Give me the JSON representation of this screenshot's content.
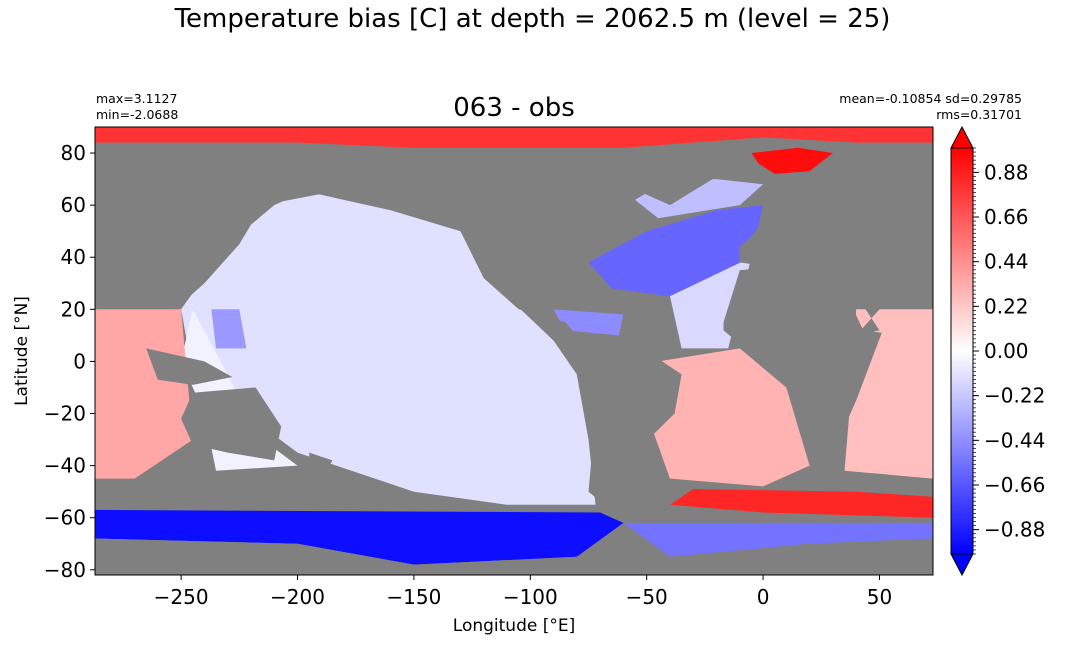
{
  "chart_data": {
    "type": "heatmap",
    "suptitle": "Temperature bias [C] at depth = 2062.5 m (level = 25)",
    "title": "063 - obs",
    "stats": {
      "max": "max=3.1127",
      "min": "min=-2.0688",
      "mean_sd": "mean=-0.10854 sd=0.29785",
      "rms": "rms=0.31701"
    },
    "xlabel": "Longitude [°E]",
    "ylabel": "Latitude [°N]",
    "xlim": [
      -287,
      73
    ],
    "ylim": [
      -82,
      90
    ],
    "x_ticks": [
      -250,
      -200,
      -150,
      -100,
      -50,
      0,
      50
    ],
    "x_tick_labels": [
      "−250",
      "−200",
      "−150",
      "−100",
      "−50",
      "0",
      "50"
    ],
    "y_ticks": [
      80,
      60,
      40,
      20,
      0,
      -20,
      -40,
      -60,
      -80
    ],
    "y_tick_labels": [
      "80",
      "60",
      "40",
      "20",
      "0",
      "−20",
      "−40",
      "−60",
      "−80"
    ],
    "colorbar": {
      "vmin": -1.0,
      "vmax": 1.0,
      "extend": "both",
      "cmap": "bwr",
      "ticks": [
        0.88,
        0.66,
        0.44,
        0.22,
        0.0,
        -0.22,
        -0.44,
        -0.66,
        -0.88
      ],
      "tick_labels": [
        "0.88",
        "0.66",
        "0.44",
        "0.22",
        "0.00",
        "−0.22",
        "−0.44",
        "−0.66",
        "−0.88"
      ],
      "colors": {
        "low": "#0000ff",
        "mid": "#ffffff",
        "high": "#ff0000"
      }
    },
    "land_color": "#808080",
    "regions": [
      {
        "name": "arctic-band",
        "value": 0.8,
        "points": [
          [
            -287,
            90
          ],
          [
            73,
            90
          ],
          [
            73,
            84
          ],
          [
            40,
            84
          ],
          [
            0,
            86
          ],
          [
            -60,
            82
          ],
          [
            -150,
            82
          ],
          [
            -200,
            84
          ],
          [
            -287,
            84
          ]
        ]
      },
      {
        "name": "greenland-sea",
        "value": 0.95,
        "points": [
          [
            -5,
            80
          ],
          [
            15,
            82
          ],
          [
            30,
            80
          ],
          [
            20,
            73
          ],
          [
            5,
            72
          ],
          [
            -2,
            76
          ]
        ]
      },
      {
        "name": "pacific-east",
        "value": -0.12,
        "points": [
          [
            -200,
            64
          ],
          [
            -165,
            66
          ],
          [
            -130,
            62
          ],
          [
            -120,
            40
          ],
          [
            -110,
            25
          ],
          [
            -90,
            8
          ],
          [
            -80,
            -5
          ],
          [
            -75,
            -30
          ],
          [
            -72,
            -55
          ],
          [
            -110,
            -55
          ],
          [
            -150,
            -50
          ],
          [
            -200,
            -35
          ],
          [
            -245,
            -5
          ],
          [
            -250,
            20
          ],
          [
            -230,
            45
          ],
          [
            -210,
            60
          ]
        ]
      },
      {
        "name": "pacific-west",
        "value": -0.05,
        "points": [
          [
            -245,
            20
          ],
          [
            -215,
            -30
          ],
          [
            -200,
            -40
          ],
          [
            -235,
            -42
          ],
          [
            -240,
            -20
          ],
          [
            -250,
            0
          ]
        ]
      },
      {
        "name": "philippine-sea",
        "value": -0.4,
        "points": [
          [
            -237,
            20
          ],
          [
            -225,
            20
          ],
          [
            -222,
            5
          ],
          [
            -235,
            5
          ]
        ]
      },
      {
        "name": "north-atlantic",
        "value": -0.6,
        "points": [
          [
            -75,
            38
          ],
          [
            -50,
            50
          ],
          [
            -20,
            58
          ],
          [
            0,
            60
          ],
          [
            -5,
            40
          ],
          [
            -40,
            25
          ],
          [
            -65,
            28
          ]
        ]
      },
      {
        "name": "greenland-labrador",
        "value": -0.25,
        "points": [
          [
            -55,
            62
          ],
          [
            -40,
            70
          ],
          [
            -20,
            70
          ],
          [
            0,
            68
          ],
          [
            -10,
            60
          ],
          [
            -45,
            55
          ]
        ]
      },
      {
        "name": "caribbean",
        "value": -0.45,
        "points": [
          [
            -90,
            20
          ],
          [
            -60,
            18
          ],
          [
            -62,
            10
          ],
          [
            -85,
            12
          ]
        ]
      },
      {
        "name": "tropical-atlantic",
        "value": -0.15,
        "points": [
          [
            -40,
            25
          ],
          [
            -5,
            40
          ],
          [
            -15,
            5
          ],
          [
            -35,
            5
          ]
        ]
      },
      {
        "name": "south-atlantic",
        "value": 0.3,
        "points": [
          [
            -45,
            0
          ],
          [
            -10,
            5
          ],
          [
            10,
            -10
          ],
          [
            20,
            -40
          ],
          [
            0,
            -48
          ],
          [
            -40,
            -45
          ],
          [
            -50,
            -20
          ]
        ]
      },
      {
        "name": "indian-ocean",
        "value": 0.25,
        "points": [
          [
            40,
            20
          ],
          [
            73,
            20
          ],
          [
            73,
            -45
          ],
          [
            35,
            -42
          ],
          [
            38,
            -10
          ]
        ]
      },
      {
        "name": "bay-of-bengal-west",
        "value": 0.35,
        "points": [
          [
            -287,
            20
          ],
          [
            -250,
            20
          ],
          [
            -245,
            -30
          ],
          [
            -270,
            -45
          ],
          [
            -287,
            -45
          ]
        ]
      },
      {
        "name": "southern-front",
        "value": 0.85,
        "points": [
          [
            -30,
            -49
          ],
          [
            40,
            -50
          ],
          [
            73,
            -52
          ],
          [
            73,
            -60
          ],
          [
            0,
            -58
          ],
          [
            -40,
            -55
          ]
        ]
      },
      {
        "name": "southern-ocean-pacific",
        "value": -0.95,
        "points": [
          [
            -287,
            -57
          ],
          [
            -70,
            -58
          ],
          [
            -60,
            -62
          ],
          [
            -80,
            -75
          ],
          [
            -150,
            -78
          ],
          [
            -200,
            -70
          ],
          [
            -287,
            -68
          ]
        ]
      },
      {
        "name": "southern-ocean-atlantic",
        "value": -0.55,
        "points": [
          [
            -60,
            -62
          ],
          [
            73,
            -62
          ],
          [
            73,
            -68
          ],
          [
            20,
            -70
          ],
          [
            -40,
            -75
          ]
        ]
      }
    ],
    "land": [
      {
        "name": "north-america",
        "points": [
          [
            -200,
            66
          ],
          [
            -165,
            70
          ],
          [
            -120,
            70
          ],
          [
            -80,
            72
          ],
          [
            -60,
            66
          ],
          [
            -55,
            52
          ],
          [
            -75,
            38
          ],
          [
            -80,
            25
          ],
          [
            -98,
            18
          ],
          [
            -90,
            10
          ],
          [
            -78,
            8
          ],
          [
            -85,
            15
          ],
          [
            -105,
            20
          ],
          [
            -120,
            32
          ],
          [
            -130,
            50
          ],
          [
            -160,
            58
          ]
        ]
      },
      {
        "name": "greenland",
        "points": [
          [
            -60,
            80
          ],
          [
            -20,
            82
          ],
          [
            -18,
            72
          ],
          [
            -40,
            60
          ],
          [
            -55,
            66
          ]
        ]
      },
      {
        "name": "south-america",
        "points": [
          [
            -80,
            10
          ],
          [
            -60,
            10
          ],
          [
            -35,
            -5
          ],
          [
            -38,
            -20
          ],
          [
            -55,
            -35
          ],
          [
            -68,
            -55
          ],
          [
            -75,
            -50
          ],
          [
            -72,
            -20
          ],
          [
            -80,
            -5
          ]
        ]
      },
      {
        "name": "eurasia",
        "points": [
          [
            -287,
            84
          ],
          [
            -287,
            75
          ],
          [
            -250,
            80
          ],
          [
            -200,
            70
          ],
          [
            -180,
            66
          ],
          [
            -215,
            60
          ],
          [
            -225,
            45
          ],
          [
            -240,
            30
          ],
          [
            -250,
            22
          ],
          [
            -265,
            22
          ],
          [
            -280,
            25
          ],
          [
            -287,
            25
          ]
        ]
      },
      {
        "name": "europe-asia-east",
        "points": [
          [
            0,
            70
          ],
          [
            30,
            72
          ],
          [
            73,
            74
          ],
          [
            73,
            25
          ],
          [
            55,
            25
          ],
          [
            40,
            10
          ],
          [
            50,
            12
          ],
          [
            35,
            32
          ],
          [
            5,
            36
          ],
          [
            -10,
            38
          ],
          [
            -10,
            44
          ],
          [
            -5,
            48
          ],
          [
            5,
            60
          ]
        ]
      },
      {
        "name": "africa",
        "points": [
          [
            -17,
            15
          ],
          [
            -10,
            35
          ],
          [
            10,
            37
          ],
          [
            33,
            31
          ],
          [
            43,
            12
          ],
          [
            51,
            11
          ],
          [
            40,
            -15
          ],
          [
            35,
            -25
          ],
          [
            20,
            -35
          ],
          [
            15,
            -25
          ],
          [
            8,
            -2
          ],
          [
            -8,
            5
          ],
          [
            -17,
            12
          ]
        ]
      },
      {
        "name": "australia",
        "points": [
          [
            -245,
            -12
          ],
          [
            -218,
            -10
          ],
          [
            -207,
            -25
          ],
          [
            -210,
            -38
          ],
          [
            -230,
            -35
          ],
          [
            -245,
            -32
          ],
          [
            -250,
            -22
          ]
        ]
      },
      {
        "name": "maritime-continent",
        "points": [
          [
            -265,
            5
          ],
          [
            -240,
            0
          ],
          [
            -228,
            -6
          ],
          [
            -245,
            -9
          ],
          [
            -260,
            -7
          ]
        ]
      },
      {
        "name": "new-zealand",
        "points": [
          [
            -195,
            -35
          ],
          [
            -185,
            -38
          ],
          [
            -190,
            -46
          ],
          [
            -195,
            -45
          ]
        ]
      },
      {
        "name": "antarctica",
        "points": [
          [
            -287,
            -68
          ],
          [
            -200,
            -70
          ],
          [
            -150,
            -78
          ],
          [
            -80,
            -75
          ],
          [
            -60,
            -64
          ],
          [
            -40,
            -75
          ],
          [
            20,
            -70
          ],
          [
            73,
            -68
          ],
          [
            73,
            -82
          ],
          [
            -287,
            -82
          ]
        ]
      }
    ]
  }
}
